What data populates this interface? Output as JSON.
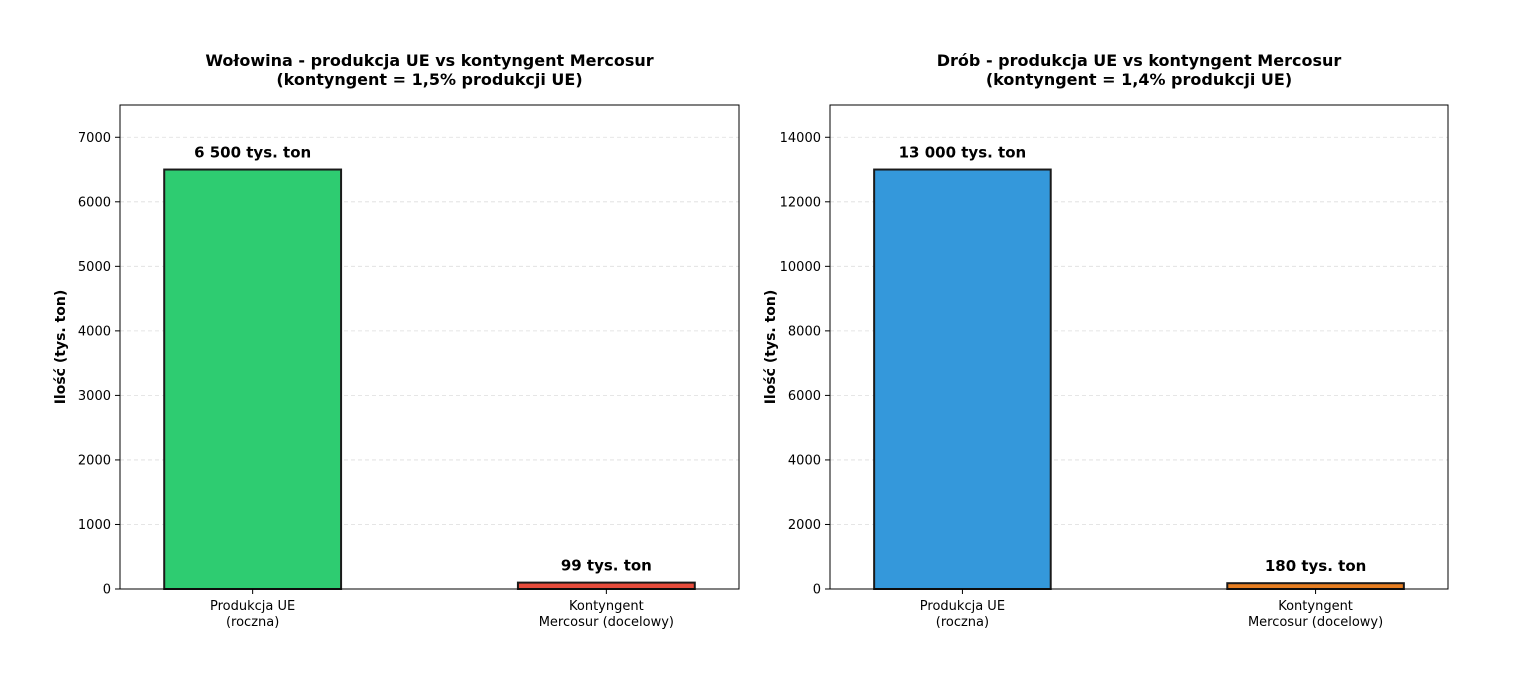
{
  "chart_data": [
    {
      "type": "bar",
      "title": "Wołowina - produkcja UE vs kontyngent Mercosur",
      "subtitle": "(kontyngent = 1,5% produkcji UE)",
      "ylabel": "Ilość (tys. ton)",
      "xlabel": "",
      "categories": [
        [
          "Produkcja UE",
          "(roczna)"
        ],
        [
          "Kontyngent",
          "Mercosur (docelowy)"
        ]
      ],
      "values": [
        6500,
        99
      ],
      "data_labels": [
        "6 500 tys. ton",
        "99 tys. ton"
      ],
      "colors": [
        "#2ecc71",
        "#e74c3c"
      ],
      "ylim": [
        0,
        7500
      ],
      "yticks": [
        0,
        1000,
        2000,
        3000,
        4000,
        5000,
        6000,
        7000
      ],
      "grid": "y-dashed"
    },
    {
      "type": "bar",
      "title": "Drób - produkcja UE vs kontyngent Mercosur",
      "subtitle": "(kontyngent = 1,4% produkcji UE)",
      "ylabel": "Ilość (tys. ton)",
      "xlabel": "",
      "categories": [
        [
          "Produkcja UE",
          "(roczna)"
        ],
        [
          "Kontyngent",
          "Mercosur (docelowy)"
        ]
      ],
      "values": [
        13000,
        180
      ],
      "data_labels": [
        "13 000 tys. ton",
        "180 tys. ton"
      ],
      "colors": [
        "#3498db",
        "#e67e22"
      ],
      "ylim": [
        0,
        15000
      ],
      "yticks": [
        0,
        2000,
        4000,
        6000,
        8000,
        10000,
        12000,
        14000
      ],
      "grid": "y-dashed"
    }
  ]
}
